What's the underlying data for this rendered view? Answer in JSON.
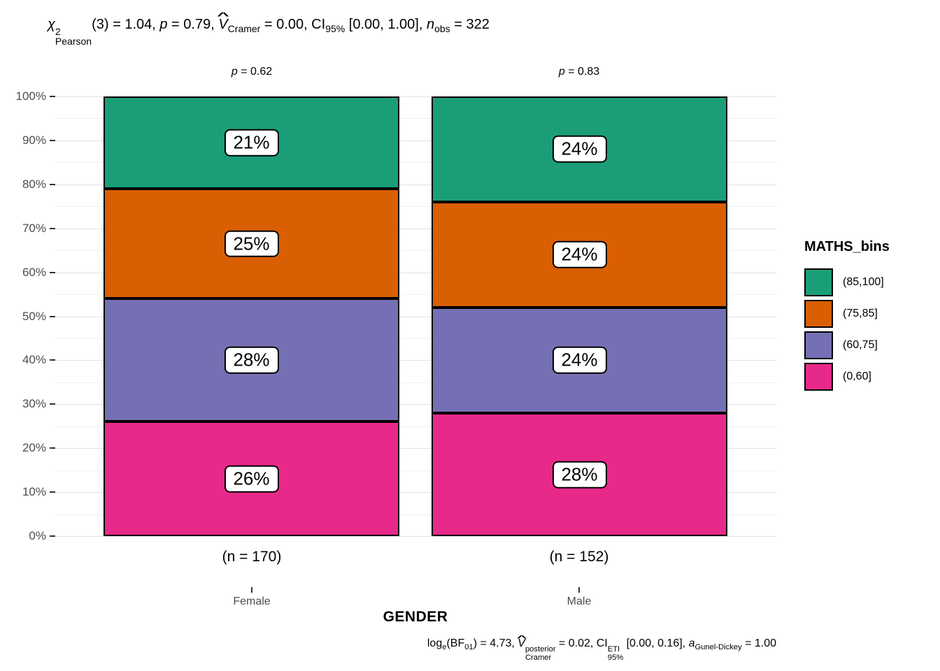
{
  "header": {
    "chi": "χ",
    "chi_sup": "2",
    "chi_sub": "Pearson",
    "seg1": "(3) = 1.04, ",
    "p": "p",
    "seg2": " = 0.79, ",
    "hat": "^",
    "v": "V",
    "v_sub": "Cramer",
    "seg3": " = 0.00, CI",
    "ci_sub": "95%",
    "seg4": " [0.00, 1.00], ",
    "n": "n",
    "n_sub": "obs",
    "seg5": " = 322"
  },
  "caption": {
    "log": "log",
    "log_sub": "e",
    "seg1": "(BF",
    "bf_sub": "01",
    "seg2": ") = 4.73, ",
    "hat": "^",
    "v": "V",
    "v_sup": "posterior",
    "v_sub": "Cramer",
    "seg3": " = 0.02, CI",
    "ci_sup": "ETI",
    "ci_sub": "95%",
    "seg4": " [0.00, 0.16], ",
    "a": "a",
    "a_sub": "Gunel-Dickey",
    "seg5": " = 1.00"
  },
  "annotations": {
    "female": {
      "p": "p",
      "p_val": " = 0.62",
      "n_label": "(n = 170)"
    },
    "male": {
      "p": "p",
      "p_val": " = 0.83",
      "n_label": "(n = 152)"
    }
  },
  "axes": {
    "y_ticks": [
      "100%",
      "90%",
      "80%",
      "70%",
      "60%",
      "50%",
      "40%",
      "30%",
      "20%",
      "10%",
      "0%"
    ],
    "x_categories": [
      "Female",
      "Male"
    ],
    "x_title": "GENDER"
  },
  "legend": {
    "title": "MATHS_bins",
    "items": [
      {
        "label": "(85,100]",
        "color": "#1B9E77"
      },
      {
        "label": "(75,85]",
        "color": "#D95F02"
      },
      {
        "label": "(60,75]",
        "color": "#7570B3"
      },
      {
        "label": "(0,60]",
        "color": "#E7298A"
      }
    ]
  },
  "chart_data": {
    "type": "bar",
    "subtype": "stacked-percent",
    "title": "χ²Pearson(3) = 1.04, p = 0.79, V̂Cramer = 0.00, CI95% [0.00, 1.00], nobs = 322",
    "caption": "loge(BF01) = 4.73, V̂Cramer posterior = 0.02, CI95% ETI [0.00, 0.16], aGunel-Dickey = 1.00",
    "xlabel": "GENDER",
    "ylabel": "",
    "ylim": [
      0,
      100
    ],
    "y_tick_step": 10,
    "grid": true,
    "legend_title": "MATHS_bins",
    "legend_position": "right",
    "categories": [
      "Female",
      "Male"
    ],
    "category_n": [
      170,
      152
    ],
    "category_p_values": [
      0.62,
      0.83
    ],
    "n_obs": 322,
    "series": [
      {
        "name": "(85,100]",
        "color": "#1B9E77",
        "values": [
          21,
          24
        ],
        "labels": [
          "21%",
          "24%"
        ]
      },
      {
        "name": "(75,85]",
        "color": "#D95F02",
        "values": [
          25,
          24
        ],
        "labels": [
          "25%",
          "24%"
        ]
      },
      {
        "name": "(60,75]",
        "color": "#7570B3",
        "values": [
          28,
          24
        ],
        "labels": [
          "28%",
          "24%"
        ]
      },
      {
        "name": "(0,60]",
        "color": "#E7298A",
        "values": [
          26,
          28
        ],
        "labels": [
          "26%",
          "28%"
        ]
      }
    ]
  }
}
